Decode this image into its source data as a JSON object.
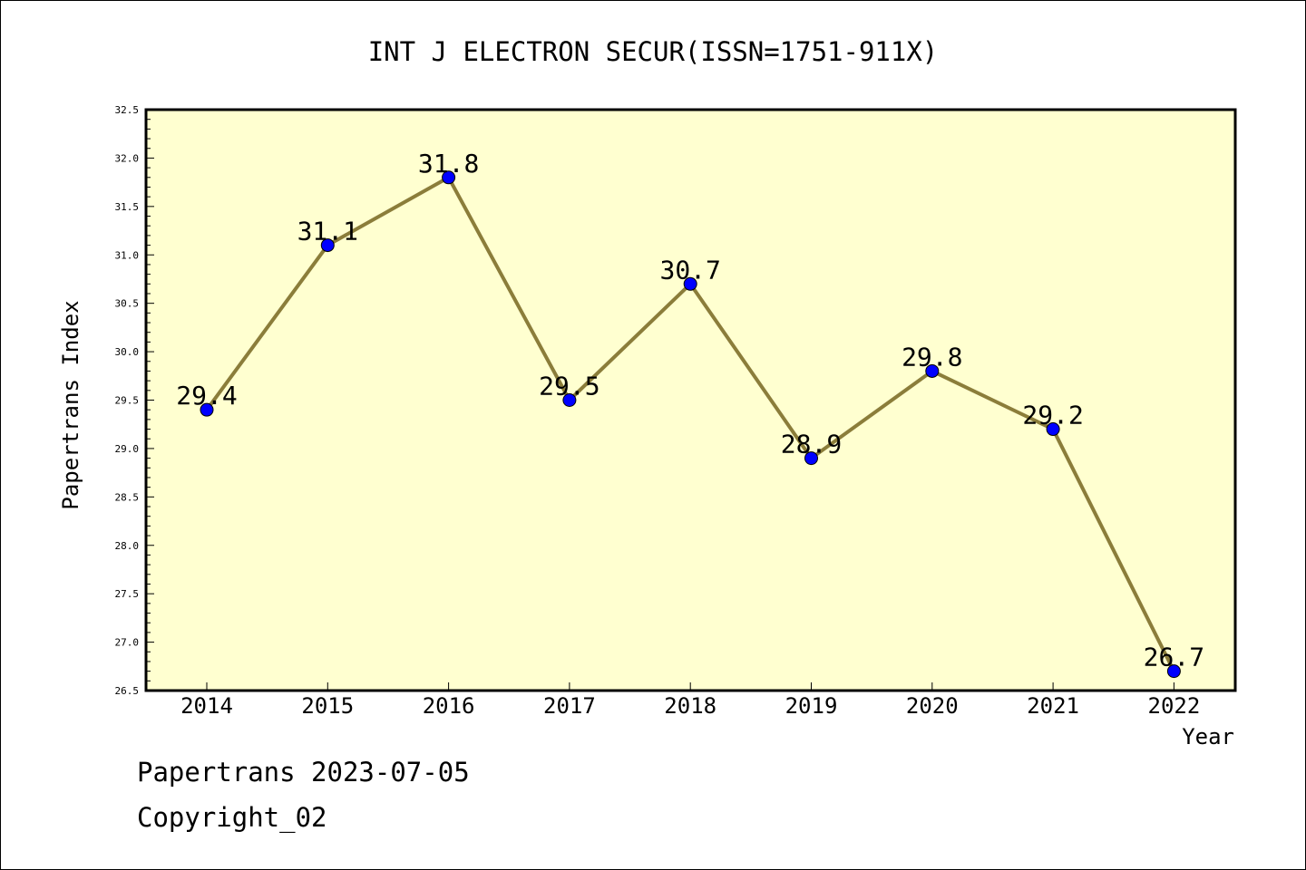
{
  "chart_data": {
    "type": "line",
    "title": "INT J ELECTRON SECUR(ISSN=1751-911X)",
    "xlabel": "Year",
    "ylabel": "Papertrans Index",
    "categories": [
      "2014",
      "2015",
      "2016",
      "2017",
      "2018",
      "2019",
      "2020",
      "2021",
      "2022"
    ],
    "series": [
      {
        "values": [
          29.4,
          31.1,
          31.8,
          29.5,
          30.7,
          28.9,
          29.8,
          29.2,
          26.7
        ],
        "data_labels": [
          "29.4",
          "31.1",
          "31.8",
          "29.5",
          "30.7",
          "28.9",
          "29.8",
          "29.2",
          "26.7"
        ]
      }
    ],
    "ylim": [
      26.5,
      32.5
    ],
    "yticks": [
      "26.5",
      "27.0",
      "27.5",
      "28.0",
      "28.5",
      "29.0",
      "29.5",
      "30.0",
      "30.5",
      "31.0",
      "31.5",
      "32.0",
      "32.5"
    ],
    "grid": false,
    "plot_background": "#ffffd0",
    "line_color": "#8b7d3a",
    "marker_color": "#0000ff"
  },
  "footer": {
    "line1": "Papertrans 2023-07-05",
    "line2": "Copyright_02"
  }
}
